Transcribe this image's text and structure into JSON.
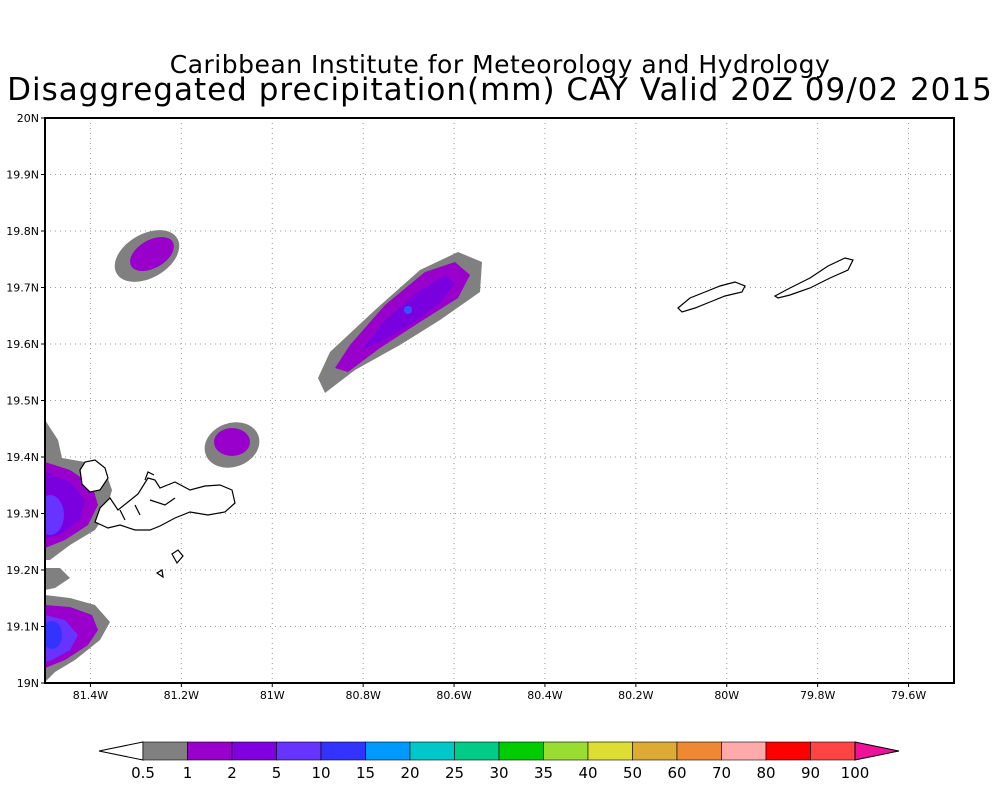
{
  "title": {
    "line1": "Caribbean Institute for Meteorology and Hydrology",
    "line2": "Disaggregated precipitation(mm) CAY Valid 20Z 09/02 2015"
  },
  "map": {
    "lat_ticks": [
      "20N",
      "19.9N",
      "19.8N",
      "19.7N",
      "19.6N",
      "19.5N",
      "19.4N",
      "19.3N",
      "19.2N",
      "19.1N",
      "19N"
    ],
    "lon_ticks": [
      "81.4W",
      "81.2W",
      "81W",
      "80.8W",
      "80.6W",
      "80.4W",
      "80.2W",
      "80W",
      "79.8W",
      "79.6W"
    ],
    "lat_range": [
      19.0,
      20.0
    ],
    "lon_range": [
      -81.5,
      -79.5
    ],
    "grid": "dotted",
    "islands": [
      "Grand Cayman",
      "Little Cayman",
      "Cayman Brac"
    ]
  },
  "colorbar": {
    "labels": [
      "0.5",
      "1",
      "2",
      "5",
      "10",
      "15",
      "20",
      "25",
      "30",
      "35",
      "40",
      "50",
      "60",
      "70",
      "80",
      "90",
      "100"
    ],
    "colors": [
      "#808080",
      "#9900cc",
      "#8000e0",
      "#6633ff",
      "#3333ff",
      "#0099ff",
      "#00c8c8",
      "#00cc88",
      "#00cc00",
      "#99dd33",
      "#dddd33",
      "#ddaa33",
      "#ee8833",
      "#ffaaaa",
      "#ff0000",
      "#ff4444",
      "#ee1199"
    ]
  },
  "precip_colors": {
    "grey": "#808080",
    "p1": "#9900cc",
    "p2": "#7b00e0",
    "p5": "#6633ff",
    "p10": "#3333ff"
  }
}
